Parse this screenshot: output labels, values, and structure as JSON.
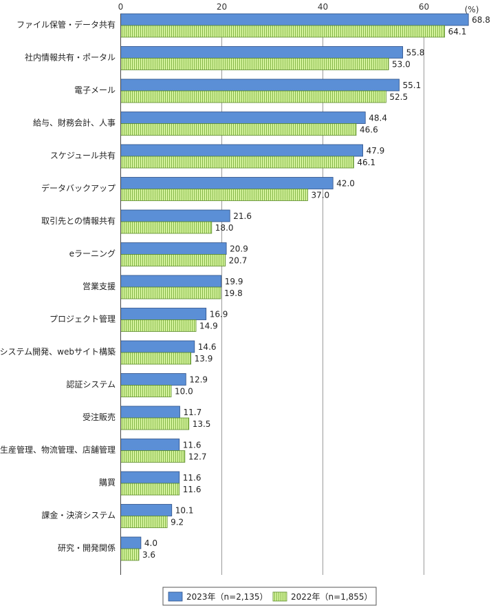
{
  "chart_data": {
    "type": "bar",
    "orientation": "horizontal",
    "unit": "(%)",
    "xlim": [
      0,
      70
    ],
    "ticks": [
      0,
      20,
      40,
      60
    ],
    "grid": true,
    "legend_position": "bottom",
    "categories": [
      "ファイル保管・データ共有",
      "社内情報共有・ポータル",
      "電子メール",
      "給与、財務会計、人事",
      "スケジュール共有",
      "データバックアップ",
      "取引先との情報共有",
      "eラーニング",
      "営業支援",
      "プロジェクト管理",
      "システム開発、webサイト構築",
      "認証システム",
      "受注販売",
      "生産管理、物流管理、店舗管理",
      "購買",
      "課金・決済システム",
      "研究・開発関係"
    ],
    "series": [
      {
        "name": "2023年（n=2,135）",
        "color": "#5b8fd6",
        "values": [
          68.8,
          55.8,
          55.1,
          48.4,
          47.9,
          42.0,
          21.6,
          20.9,
          19.9,
          16.9,
          14.6,
          12.9,
          11.7,
          11.6,
          11.6,
          10.1,
          4.0
        ]
      },
      {
        "name": "2022年（n=1,855）",
        "color": "#c8ec8c",
        "values": [
          64.1,
          53.0,
          52.5,
          46.6,
          46.1,
          37.0,
          18.0,
          20.7,
          19.8,
          14.9,
          13.9,
          10.0,
          13.5,
          12.7,
          11.6,
          9.2,
          3.6
        ]
      }
    ]
  }
}
